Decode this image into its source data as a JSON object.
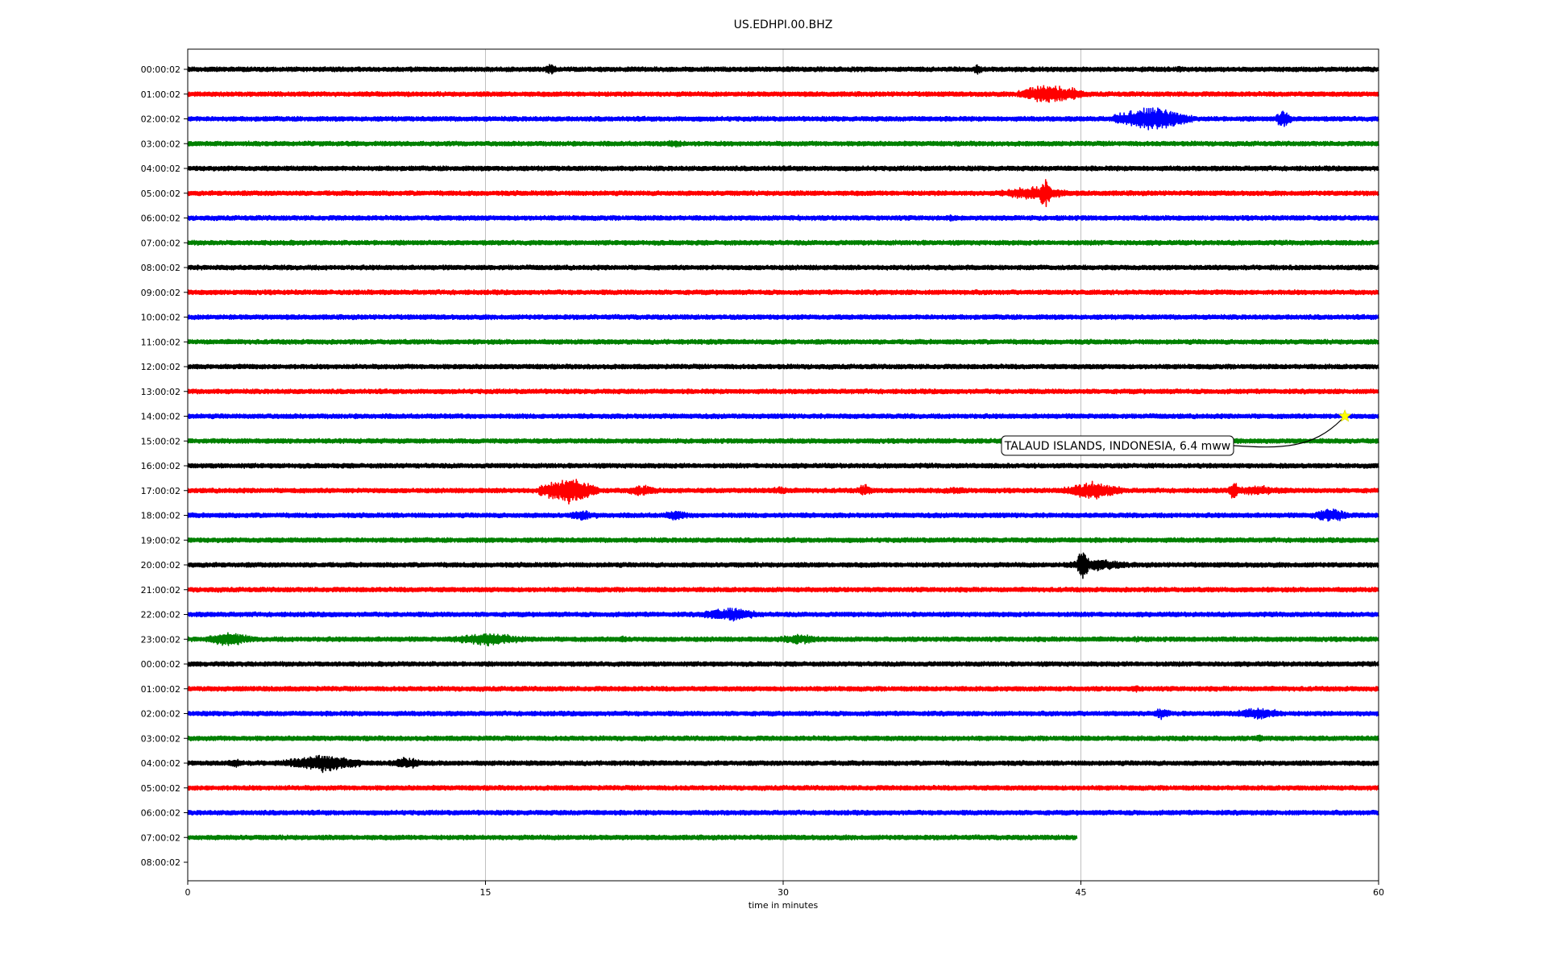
{
  "chart_data": {
    "type": "line",
    "subtype": "seismogram-helicorder",
    "title": "US.EDHPI.00.BHZ",
    "xlabel": "time in minutes",
    "ylabel": "",
    "xlim": [
      0,
      60
    ],
    "x_ticks": [
      "0",
      "15",
      "30",
      "45",
      "60"
    ],
    "grid": "vertical lines at 15, 30 and 45 minutes",
    "row_labels": [
      "00:00:02",
      "01:00:02",
      "02:00:02",
      "03:00:02",
      "04:00:02",
      "05:00:02",
      "06:00:02",
      "07:00:02",
      "08:00:02",
      "09:00:02",
      "10:00:02",
      "11:00:02",
      "12:00:02",
      "13:00:02",
      "14:00:02",
      "15:00:02",
      "16:00:02",
      "17:00:02",
      "18:00:02",
      "19:00:02",
      "20:00:02",
      "21:00:02",
      "22:00:02",
      "23:00:02",
      "00:00:02",
      "01:00:02",
      "02:00:02",
      "03:00:02",
      "04:00:02",
      "05:00:02",
      "06:00:02",
      "07:00:02",
      "08:00:02"
    ],
    "trace_colors": [
      "#000000",
      "#ff0000",
      "#0000ff",
      "#008000"
    ],
    "rows": [
      {
        "end_min": 60,
        "bursts": [
          [
            18.3,
            0.3,
            9
          ],
          [
            39.8,
            0.3,
            7
          ],
          [
            50,
            0.3,
            5
          ],
          [
            54,
            0.3,
            4
          ]
        ]
      },
      {
        "end_min": 60,
        "bursts": [
          [
            9.5,
            0.6,
            4
          ],
          [
            43.3,
            1.5,
            14
          ],
          [
            44.5,
            0.8,
            9
          ]
        ]
      },
      {
        "end_min": 60,
        "bursts": [
          [
            48.6,
            2.0,
            16
          ],
          [
            55.2,
            0.4,
            14
          ]
        ]
      },
      {
        "end_min": 60,
        "bursts": [
          [
            24.6,
            1.0,
            5
          ]
        ]
      },
      {
        "end_min": 60,
        "bursts": []
      },
      {
        "end_min": 60,
        "bursts": [
          [
            43.2,
            0.3,
            22
          ],
          [
            42.7,
            1.8,
            10
          ]
        ]
      },
      {
        "end_min": 60,
        "bursts": [
          [
            38.5,
            0.4,
            5
          ],
          [
            30.8,
            0.4,
            4
          ]
        ]
      },
      {
        "end_min": 60,
        "bursts": []
      },
      {
        "end_min": 60,
        "bursts": []
      },
      {
        "end_min": 60,
        "bursts": [
          [
            9.2,
            0.5,
            4
          ]
        ]
      },
      {
        "end_min": 60,
        "bursts": []
      },
      {
        "end_min": 60,
        "bursts": []
      },
      {
        "end_min": 60,
        "bursts": []
      },
      {
        "end_min": 60,
        "bursts": []
      },
      {
        "end_min": 60,
        "bursts": [
          [
            3.5,
            0.4,
            3
          ]
        ]
      },
      {
        "end_min": 60,
        "bursts": []
      },
      {
        "end_min": 60,
        "bursts": []
      },
      {
        "end_min": 60,
        "bursts": [
          [
            19.2,
            1.5,
            18
          ],
          [
            22.9,
            1.0,
            8
          ],
          [
            29.8,
            0.8,
            6
          ],
          [
            34.1,
            0.4,
            9
          ],
          [
            38.7,
            1.2,
            5
          ],
          [
            45.6,
            1.5,
            12
          ],
          [
            52.7,
            0.3,
            14
          ],
          [
            53.9,
            1.8,
            7
          ]
        ]
      },
      {
        "end_min": 60,
        "bursts": [
          [
            19.9,
            1.0,
            7
          ],
          [
            24.6,
            0.8,
            7
          ],
          [
            57.6,
            1.0,
            10
          ]
        ]
      },
      {
        "end_min": 60,
        "bursts": []
      },
      {
        "end_min": 60,
        "bursts": [
          [
            45.1,
            0.3,
            24
          ],
          [
            45.8,
            1.8,
            8
          ]
        ]
      },
      {
        "end_min": 60,
        "bursts": []
      },
      {
        "end_min": 60,
        "bursts": [
          [
            27.3,
            1.5,
            10
          ]
        ]
      },
      {
        "end_min": 60,
        "bursts": [
          [
            2.1,
            1.2,
            10
          ],
          [
            15.1,
            2.0,
            9
          ],
          [
            30.8,
            1.5,
            7
          ],
          [
            21.9,
            0.6,
            5
          ],
          [
            47.8,
            0.5,
            4
          ]
        ]
      },
      {
        "end_min": 60,
        "bursts": []
      },
      {
        "end_min": 60,
        "bursts": [
          [
            3.8,
            1.0,
            4
          ],
          [
            47.8,
            0.6,
            5
          ]
        ]
      },
      {
        "end_min": 60,
        "bursts": [
          [
            49.1,
            0.5,
            8
          ],
          [
            53.9,
            1.5,
            8
          ]
        ]
      },
      {
        "end_min": 60,
        "bursts": [
          [
            54.0,
            0.3,
            6
          ],
          [
            50.2,
            0.8,
            4
          ]
        ]
      },
      {
        "end_min": 60,
        "bursts": [
          [
            6.8,
            2.0,
            12
          ],
          [
            11.0,
            1.0,
            8
          ],
          [
            2.4,
            0.6,
            6
          ]
        ]
      },
      {
        "end_min": 60,
        "bursts": []
      },
      {
        "end_min": 60,
        "bursts": []
      },
      {
        "end_min": 44.8,
        "bursts": []
      },
      {
        "end_min": 0,
        "bursts": []
      }
    ],
    "event": {
      "label": "TALAUD ISLANDS, INDONESIA, 6.4 mww",
      "row": 14,
      "minute": 58.3,
      "marker_color": "#ffff00"
    }
  }
}
